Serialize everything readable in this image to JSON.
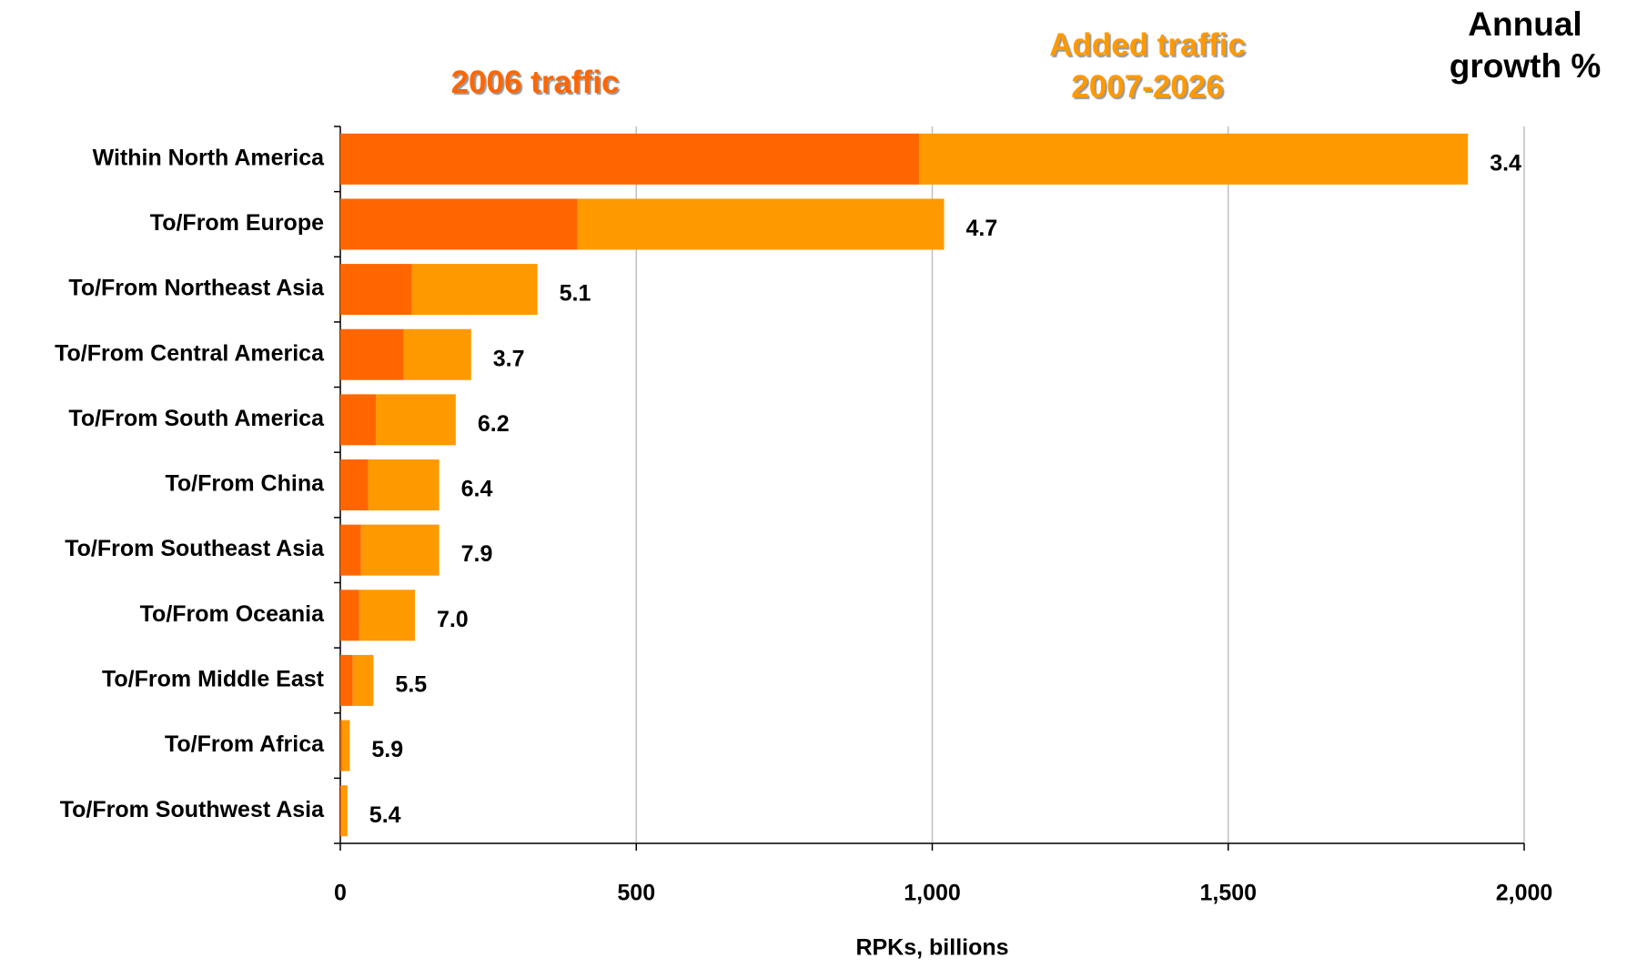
{
  "chart_data": {
    "type": "stacked_bar_horizontal",
    "categories": [
      "Within North America",
      "To/From Europe",
      "To/From Northeast Asia",
      "To/From Central America",
      "To/From South America",
      "To/From China",
      "To/From Southeast Asia",
      "To/From Oceania",
      "To/From Middle East",
      "To/From Africa",
      "To/From Southwest Asia"
    ],
    "series": [
      {
        "name": "2006 traffic",
        "color": "#ff6600",
        "values": [
          978,
          401,
          121,
          107,
          60,
          47,
          35,
          32,
          21,
          3,
          2
        ]
      },
      {
        "name": "Added traffic 2007-2026",
        "color": "#ff9900",
        "values": [
          927,
          619,
          212,
          114,
          135,
          120,
          132,
          94,
          35,
          13,
          10
        ]
      }
    ],
    "growth": {
      "title": "Annual growth %",
      "values": [
        3.4,
        4.7,
        5.1,
        3.7,
        6.2,
        6.4,
        7.9,
        7.0,
        5.5,
        5.9,
        5.4
      ],
      "value_labels": [
        "3.4",
        "4.7",
        "5.1",
        "3.7",
        "6.2",
        "6.4",
        "7.9",
        "7.0",
        "5.5",
        "5.9",
        "5.4"
      ]
    },
    "xlabel": "RPKs, billions",
    "xlim": [
      0,
      2000
    ],
    "xticks": [
      0,
      {
        "value": 500,
        "label": "500"
      },
      {
        "value": 1000,
        "label": "1,000"
      },
      {
        "value": 1500,
        "label": "1,500"
      },
      {
        "value": 2000,
        "label": "2,000"
      }
    ],
    "grid": true
  }
}
